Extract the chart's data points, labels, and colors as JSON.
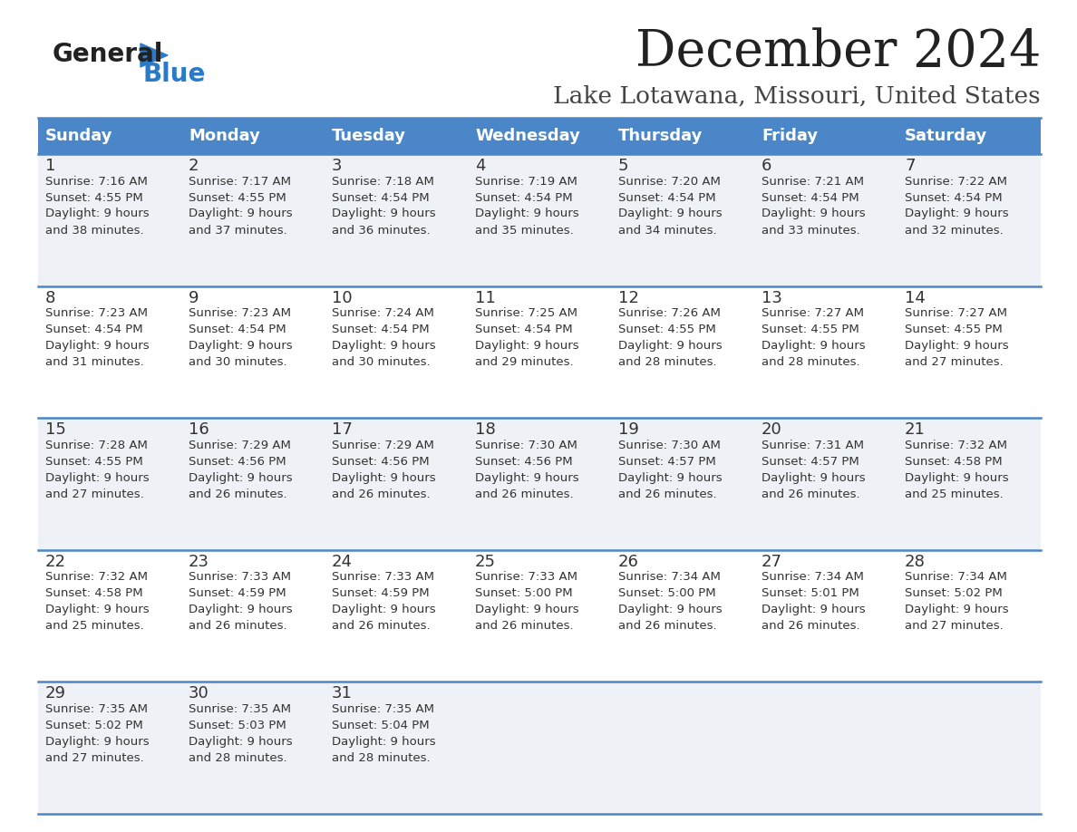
{
  "title": "December 2024",
  "subtitle": "Lake Lotawana, Missouri, United States",
  "days_of_week": [
    "Sunday",
    "Monday",
    "Tuesday",
    "Wednesday",
    "Thursday",
    "Friday",
    "Saturday"
  ],
  "header_bg": "#4a86c8",
  "header_text": "#ffffff",
  "row_bg_odd": "#eef2f7",
  "row_bg_even": "#ffffff",
  "cell_text_color": "#333333",
  "day_num_color": "#333333",
  "border_color": "#4a86c8",
  "title_color": "#222222",
  "subtitle_color": "#444444",
  "logo_general_color": "#222222",
  "logo_blue_color": "#2a7ac7",
  "weeks": [
    [
      {
        "day": 1,
        "sunrise": "7:16 AM",
        "sunset": "4:55 PM",
        "daylight": "9 hours and 38 minutes."
      },
      {
        "day": 2,
        "sunrise": "7:17 AM",
        "sunset": "4:55 PM",
        "daylight": "9 hours and 37 minutes."
      },
      {
        "day": 3,
        "sunrise": "7:18 AM",
        "sunset": "4:54 PM",
        "daylight": "9 hours and 36 minutes."
      },
      {
        "day": 4,
        "sunrise": "7:19 AM",
        "sunset": "4:54 PM",
        "daylight": "9 hours and 35 minutes."
      },
      {
        "day": 5,
        "sunrise": "7:20 AM",
        "sunset": "4:54 PM",
        "daylight": "9 hours and 34 minutes."
      },
      {
        "day": 6,
        "sunrise": "7:21 AM",
        "sunset": "4:54 PM",
        "daylight": "9 hours and 33 minutes."
      },
      {
        "day": 7,
        "sunrise": "7:22 AM",
        "sunset": "4:54 PM",
        "daylight": "9 hours and 32 minutes."
      }
    ],
    [
      {
        "day": 8,
        "sunrise": "7:23 AM",
        "sunset": "4:54 PM",
        "daylight": "9 hours and 31 minutes."
      },
      {
        "day": 9,
        "sunrise": "7:23 AM",
        "sunset": "4:54 PM",
        "daylight": "9 hours and 30 minutes."
      },
      {
        "day": 10,
        "sunrise": "7:24 AM",
        "sunset": "4:54 PM",
        "daylight": "9 hours and 30 minutes."
      },
      {
        "day": 11,
        "sunrise": "7:25 AM",
        "sunset": "4:54 PM",
        "daylight": "9 hours and 29 minutes."
      },
      {
        "day": 12,
        "sunrise": "7:26 AM",
        "sunset": "4:55 PM",
        "daylight": "9 hours and 28 minutes."
      },
      {
        "day": 13,
        "sunrise": "7:27 AM",
        "sunset": "4:55 PM",
        "daylight": "9 hours and 28 minutes."
      },
      {
        "day": 14,
        "sunrise": "7:27 AM",
        "sunset": "4:55 PM",
        "daylight": "9 hours and 27 minutes."
      }
    ],
    [
      {
        "day": 15,
        "sunrise": "7:28 AM",
        "sunset": "4:55 PM",
        "daylight": "9 hours and 27 minutes."
      },
      {
        "day": 16,
        "sunrise": "7:29 AM",
        "sunset": "4:56 PM",
        "daylight": "9 hours and 26 minutes."
      },
      {
        "day": 17,
        "sunrise": "7:29 AM",
        "sunset": "4:56 PM",
        "daylight": "9 hours and 26 minutes."
      },
      {
        "day": 18,
        "sunrise": "7:30 AM",
        "sunset": "4:56 PM",
        "daylight": "9 hours and 26 minutes."
      },
      {
        "day": 19,
        "sunrise": "7:30 AM",
        "sunset": "4:57 PM",
        "daylight": "9 hours and 26 minutes."
      },
      {
        "day": 20,
        "sunrise": "7:31 AM",
        "sunset": "4:57 PM",
        "daylight": "9 hours and 26 minutes."
      },
      {
        "day": 21,
        "sunrise": "7:32 AM",
        "sunset": "4:58 PM",
        "daylight": "9 hours and 25 minutes."
      }
    ],
    [
      {
        "day": 22,
        "sunrise": "7:32 AM",
        "sunset": "4:58 PM",
        "daylight": "9 hours and 25 minutes."
      },
      {
        "day": 23,
        "sunrise": "7:33 AM",
        "sunset": "4:59 PM",
        "daylight": "9 hours and 26 minutes."
      },
      {
        "day": 24,
        "sunrise": "7:33 AM",
        "sunset": "4:59 PM",
        "daylight": "9 hours and 26 minutes."
      },
      {
        "day": 25,
        "sunrise": "7:33 AM",
        "sunset": "5:00 PM",
        "daylight": "9 hours and 26 minutes."
      },
      {
        "day": 26,
        "sunrise": "7:34 AM",
        "sunset": "5:00 PM",
        "daylight": "9 hours and 26 minutes."
      },
      {
        "day": 27,
        "sunrise": "7:34 AM",
        "sunset": "5:01 PM",
        "daylight": "9 hours and 26 minutes."
      },
      {
        "day": 28,
        "sunrise": "7:34 AM",
        "sunset": "5:02 PM",
        "daylight": "9 hours and 27 minutes."
      }
    ],
    [
      {
        "day": 29,
        "sunrise": "7:35 AM",
        "sunset": "5:02 PM",
        "daylight": "9 hours and 27 minutes."
      },
      {
        "day": 30,
        "sunrise": "7:35 AM",
        "sunset": "5:03 PM",
        "daylight": "9 hours and 28 minutes."
      },
      {
        "day": 31,
        "sunrise": "7:35 AM",
        "sunset": "5:04 PM",
        "daylight": "9 hours and 28 minutes."
      },
      null,
      null,
      null,
      null
    ]
  ]
}
